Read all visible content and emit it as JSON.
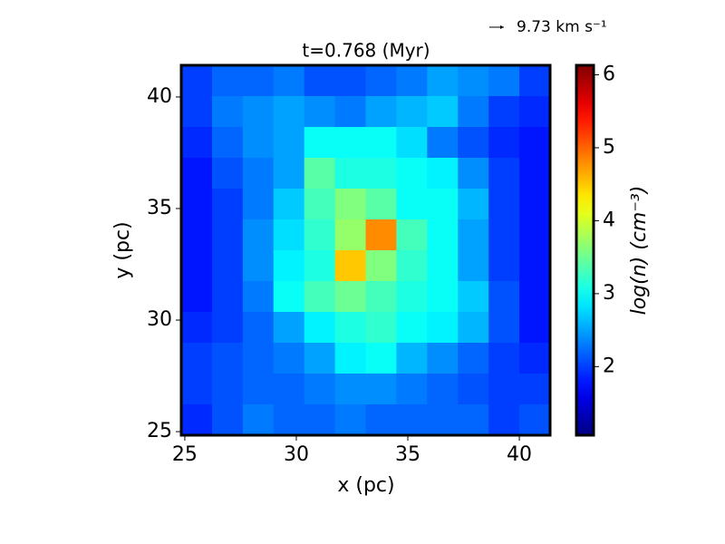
{
  "chart_data": {
    "type": "heatmap",
    "title": "t=0.768 (Myr)",
    "x_label": "x (pc)",
    "y_label": "y (pc)",
    "colorbar_label": "log(n) (cm⁻³)",
    "quiver_key": "9.73 km s⁻¹",
    "colormap": "jet",
    "xlim": [
      24.84,
      41.38
    ],
    "ylim": [
      24.84,
      41.42
    ],
    "xticks": [
      25,
      30,
      35,
      40
    ],
    "yticks": [
      25,
      30,
      35,
      40
    ],
    "clim": [
      1.06,
      6.13
    ],
    "cticks": [
      2,
      3,
      4,
      5,
      6
    ],
    "z": [
      [
        2.0,
        2.2,
        2.2,
        2.3,
        2.1,
        2.1,
        2.2,
        2.3,
        2.5,
        2.4,
        2.3,
        2.0
      ],
      [
        2.0,
        2.3,
        2.4,
        2.5,
        2.4,
        2.3,
        2.5,
        2.6,
        2.7,
        2.3,
        2.0,
        1.9
      ],
      [
        1.9,
        2.2,
        2.4,
        2.5,
        3.0,
        3.0,
        3.0,
        2.8,
        2.3,
        2.1,
        1.9,
        1.8
      ],
      [
        1.8,
        2.1,
        2.3,
        2.5,
        3.4,
        3.1,
        3.1,
        3.0,
        2.9,
        2.4,
        2.0,
        1.8
      ],
      [
        1.8,
        2.0,
        2.3,
        2.7,
        3.3,
        3.6,
        3.4,
        3.0,
        3.0,
        2.6,
        2.0,
        1.8
      ],
      [
        1.8,
        2.0,
        2.4,
        2.8,
        3.2,
        3.7,
        4.8,
        3.3,
        3.0,
        2.5,
        2.0,
        1.8
      ],
      [
        1.8,
        2.0,
        2.4,
        2.9,
        3.1,
        4.5,
        3.6,
        3.2,
        3.0,
        2.5,
        2.0,
        1.8
      ],
      [
        1.8,
        2.0,
        2.3,
        3.0,
        3.3,
        3.5,
        3.3,
        3.1,
        3.0,
        2.7,
        2.1,
        1.8
      ],
      [
        1.9,
        2.0,
        2.2,
        2.5,
        2.9,
        3.1,
        3.2,
        3.0,
        2.9,
        2.6,
        2.1,
        1.8
      ],
      [
        2.0,
        2.1,
        2.2,
        2.3,
        2.5,
        2.9,
        3.0,
        2.6,
        2.4,
        2.2,
        2.0,
        1.9
      ],
      [
        2.0,
        2.1,
        2.2,
        2.2,
        2.3,
        2.4,
        2.4,
        2.3,
        2.2,
        2.1,
        2.0,
        2.0
      ],
      [
        1.9,
        2.1,
        2.3,
        2.2,
        2.2,
        2.3,
        2.2,
        2.2,
        2.2,
        2.2,
        2.0,
        2.1
      ]
    ]
  }
}
